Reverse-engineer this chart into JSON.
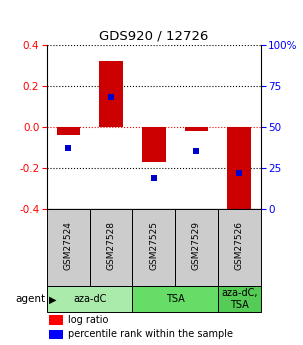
{
  "title": "GDS920 / 12726",
  "samples": [
    "GSM27524",
    "GSM27528",
    "GSM27525",
    "GSM27529",
    "GSM27526"
  ],
  "log_ratios": [
    -0.04,
    0.32,
    -0.17,
    -0.02,
    -0.43
  ],
  "percentile_ranks": [
    0.37,
    0.68,
    0.19,
    0.35,
    0.22
  ],
  "ylim": [
    -0.4,
    0.4
  ],
  "right_yticks": [
    0,
    25,
    50,
    75,
    100
  ],
  "right_yticklabels": [
    "0",
    "25",
    "50",
    "75",
    "100%"
  ],
  "left_yticks": [
    -0.4,
    -0.2,
    0.0,
    0.2,
    0.4
  ],
  "agent_groups": [
    {
      "label": "aza-dC",
      "start": 0,
      "end": 2,
      "color": "#AAEAAA"
    },
    {
      "label": "TSA",
      "start": 2,
      "end": 4,
      "color": "#66DD66"
    },
    {
      "label": "aza-dC,\nTSA",
      "start": 4,
      "end": 5,
      "color": "#55CC55"
    }
  ],
  "bar_color": "#CC0000",
  "dot_color": "#0000CC",
  "sample_box_color": "#CCCCCC",
  "legend_label_ratio": "log ratio",
  "legend_label_pct": "percentile rank within the sample",
  "hline_color": "#FF0000",
  "dotted_color": "#000000",
  "bar_width": 0.55,
  "dot_size": 28
}
